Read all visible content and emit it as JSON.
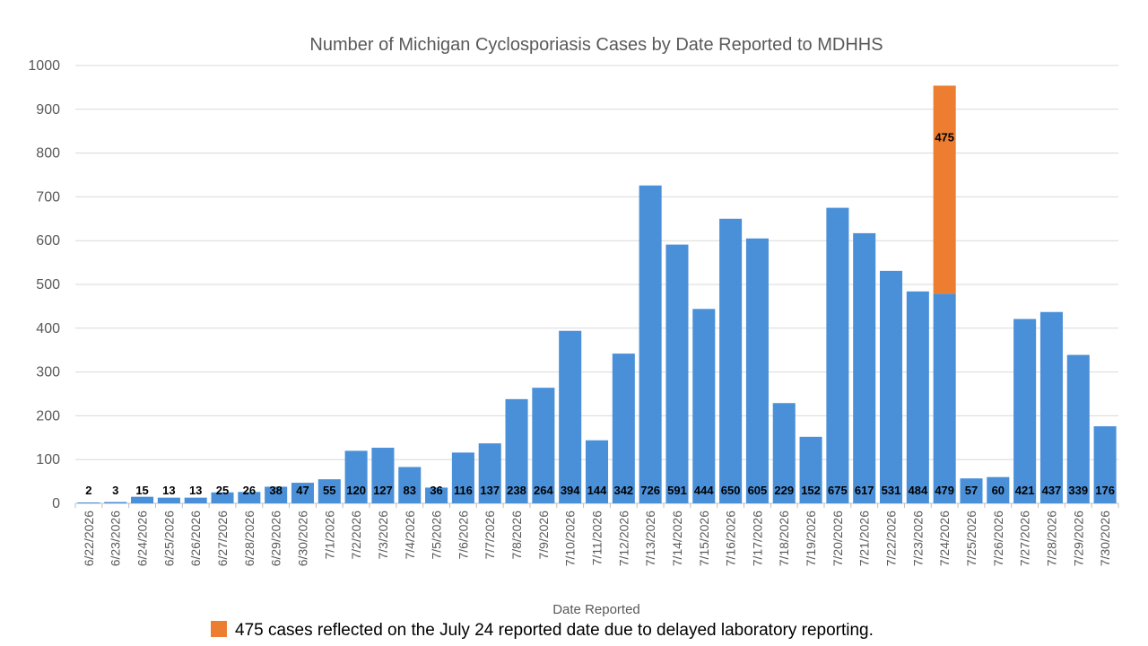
{
  "chart_data": {
    "type": "bar",
    "stacked": true,
    "title": "Number of Michigan Cyclosporiasis Cases by Date Reported to MDHHS",
    "xlabel": "Date Reported",
    "ylabel": "",
    "ylim": [
      0,
      1000
    ],
    "y_ticks": [
      0,
      100,
      200,
      300,
      400,
      500,
      600,
      700,
      800,
      900,
      1000
    ],
    "grid": true,
    "legend_position": "bottom",
    "categories": [
      "6/22/2026",
      "6/23/2026",
      "6/24/2026",
      "6/25/2026",
      "6/26/2026",
      "6/27/2026",
      "6/28/2026",
      "6/29/2026",
      "6/30/2026",
      "7/1/2026",
      "7/2/2026",
      "7/3/2026",
      "7/4/2026",
      "7/5/2026",
      "7/6/2026",
      "7/7/2026",
      "7/8/2026",
      "7/9/2026",
      "7/10/2026",
      "7/11/2026",
      "7/12/2026",
      "7/13/2026",
      "7/14/2026",
      "7/15/2026",
      "7/16/2026",
      "7/17/2026",
      "7/18/2026",
      "7/19/2026",
      "7/20/2026",
      "7/21/2026",
      "7/22/2026",
      "7/23/2026",
      "7/24/2026",
      "7/25/2026",
      "7/26/2026",
      "7/27/2026",
      "7/28/2026",
      "7/29/2026",
      "7/30/2026"
    ],
    "series": [
      {
        "color": "#4a90d9",
        "values": [
          2,
          3,
          15,
          13,
          13,
          25,
          26,
          38,
          47,
          55,
          120,
          127,
          83,
          36,
          116,
          137,
          238,
          264,
          394,
          144,
          342,
          726,
          591,
          444,
          650,
          605,
          229,
          152,
          675,
          617,
          531,
          484,
          479,
          57,
          60,
          421,
          437,
          339,
          176
        ]
      },
      {
        "name": "475 cases reflected on the July 24 reported date due to delayed laboratory reporting.",
        "color": "#ed7d31",
        "values": [
          0,
          0,
          0,
          0,
          0,
          0,
          0,
          0,
          0,
          0,
          0,
          0,
          0,
          0,
          0,
          0,
          0,
          0,
          0,
          0,
          0,
          0,
          0,
          0,
          0,
          0,
          0,
          0,
          0,
          0,
          0,
          0,
          475,
          0,
          0,
          0,
          0,
          0,
          0
        ]
      }
    ]
  }
}
